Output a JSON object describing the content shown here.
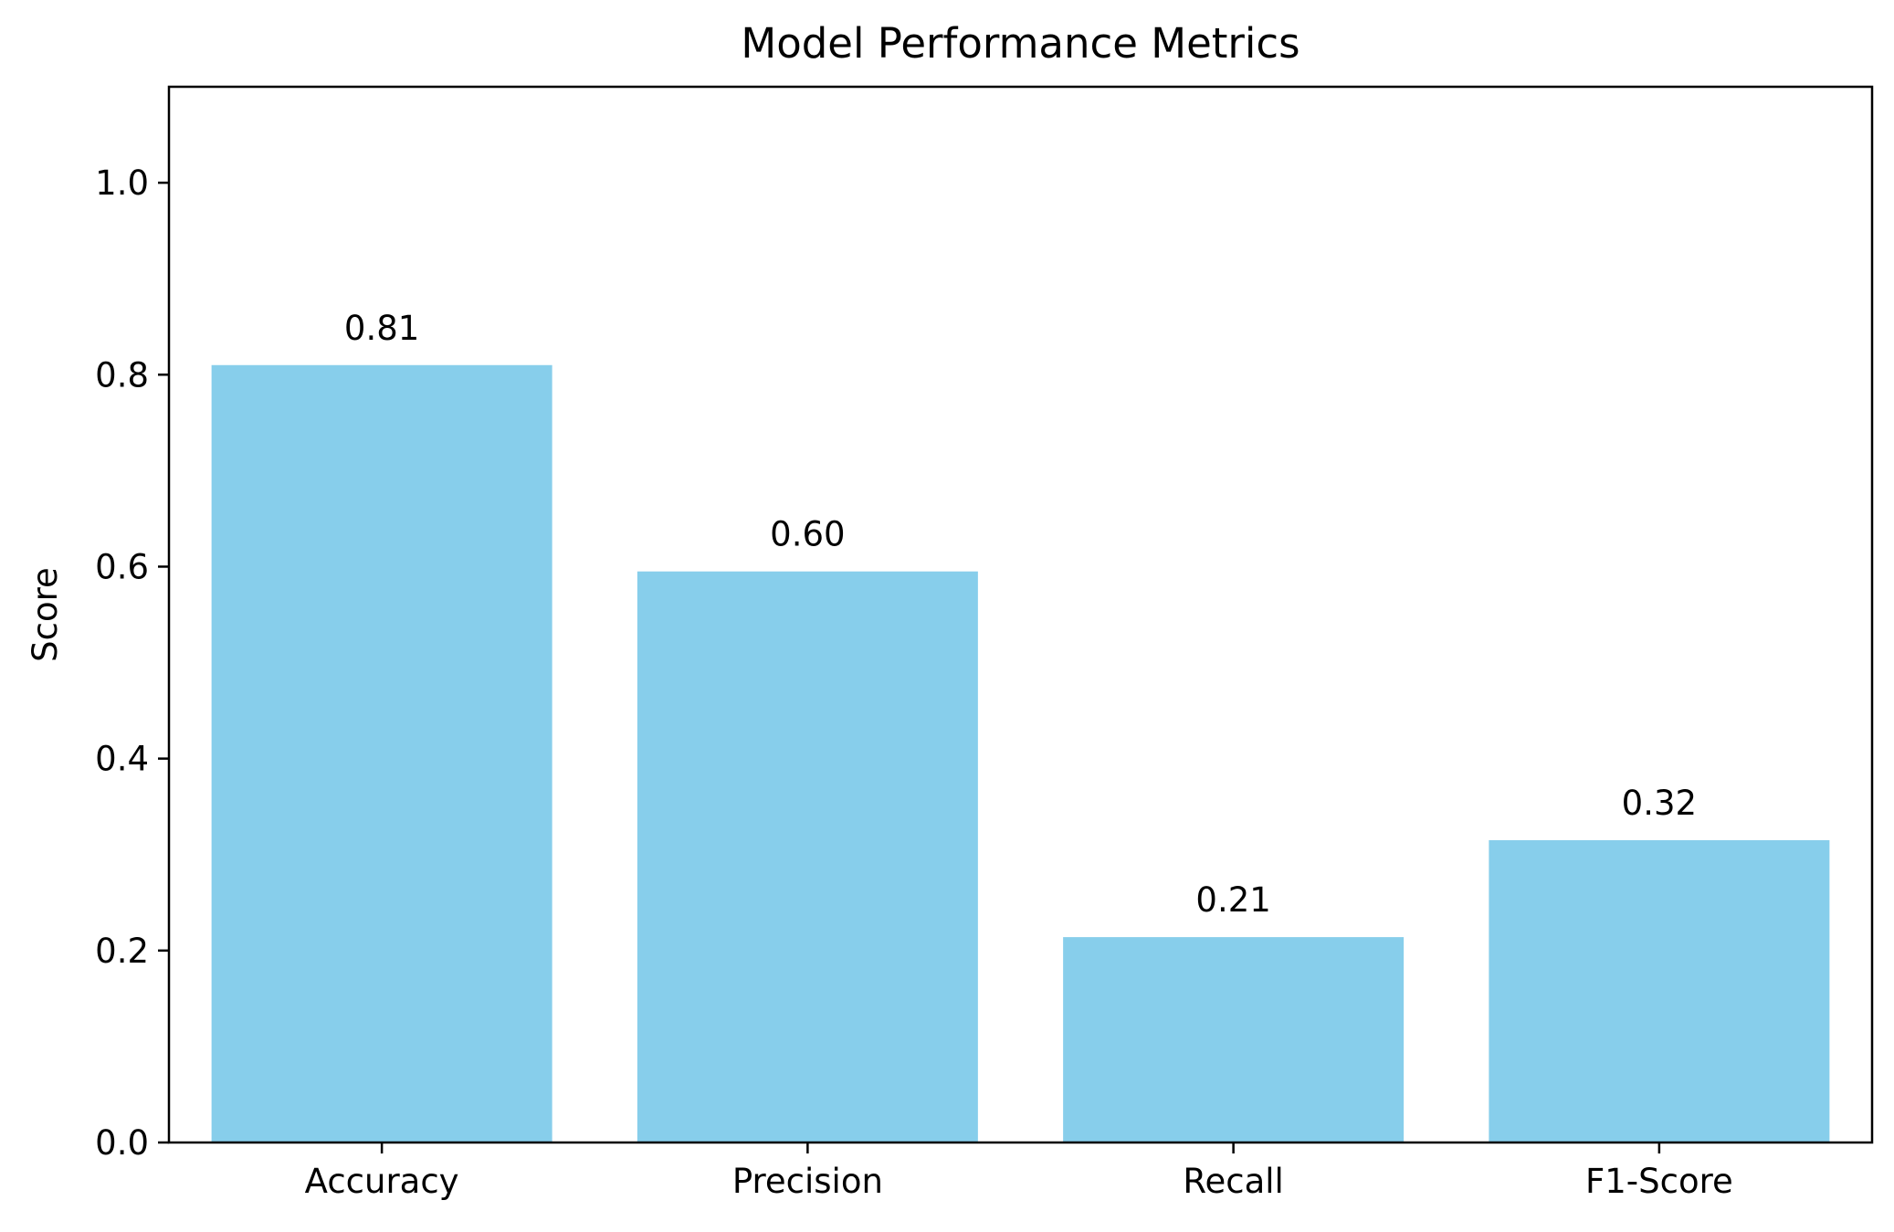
{
  "chart_data": {
    "type": "bar",
    "title": "Model Performance Metrics",
    "xlabel": "",
    "ylabel": "Score",
    "categories": [
      "Accuracy",
      "Precision",
      "Recall",
      "F1-Score"
    ],
    "values": [
      0.81,
      0.595,
      0.214,
      0.315
    ],
    "data_labels": [
      "0.81",
      "0.60",
      "0.21",
      "0.32"
    ],
    "ylim": [
      0,
      1.1
    ],
    "yticks": [
      0.0,
      0.2,
      0.4,
      0.6,
      0.8,
      1.0
    ],
    "ytick_labels": [
      "0.0",
      "0.2",
      "0.4",
      "0.6",
      "0.8",
      "1.0"
    ],
    "bar_color": "#87CEEB",
    "grid": false,
    "legend": "none"
  }
}
